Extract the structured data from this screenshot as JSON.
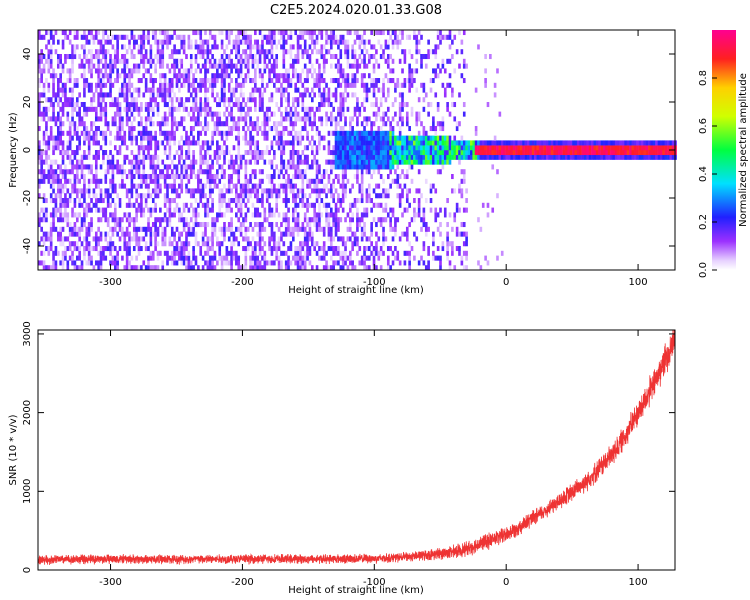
{
  "title": "C2E5.2024.020.01.33.G08",
  "chart_data": [
    {
      "type": "heatmap",
      "xlabel": "Height of straight line (km)",
      "ylabel": "Frequency (Hz)",
      "xlim": [
        -355,
        128
      ],
      "ylim": [
        -50,
        50
      ],
      "xticks": [
        "-300",
        "-200",
        "-100",
        "0",
        "100"
      ],
      "xtick_values": [
        -300,
        -200,
        -100,
        0,
        100
      ],
      "yticks": [
        "-40",
        "-20",
        "0",
        "20",
        "40"
      ],
      "ytick_values": [
        -40,
        -20,
        0,
        20,
        40
      ],
      "colorbar": {
        "label": "Normalized spectral amplitude",
        "range": [
          0,
          1
        ],
        "ticks": [
          "0.0",
          "0.2",
          "0.4",
          "0.6",
          "0.8"
        ],
        "tick_values": [
          0.0,
          0.2,
          0.4,
          0.6,
          0.8
        ],
        "colormap": "rainbow (white-lavender-purple-blue-cyan-green-yellow-orange-red-magenta)"
      },
      "features": [
        {
          "region": "noise",
          "x_range": [
            -355,
            -30
          ],
          "freq_range": [
            -50,
            50
          ],
          "amplitude": "0.0-0.2 scattered"
        },
        {
          "region": "transition",
          "x_range": [
            -130,
            -25
          ],
          "freq_range": [
            -8,
            8
          ],
          "amplitude": "0.2-0.6"
        },
        {
          "region": "carrier",
          "x_range": [
            -25,
            128
          ],
          "freq": 0,
          "amplitude": "0.8-1.0"
        }
      ]
    },
    {
      "type": "line",
      "xlabel": "Height of straight line (km)",
      "ylabel": "SNR (10 * v/v)",
      "xlim": [
        -355,
        128
      ],
      "ylim": [
        0,
        3050
      ],
      "xticks": [
        "-300",
        "-200",
        "-100",
        "0",
        "100"
      ],
      "xtick_values": [
        -300,
        -200,
        -100,
        0,
        100
      ],
      "yticks": [
        "0",
        "1000",
        "2000",
        "3000"
      ],
      "ytick_values": [
        0,
        1000,
        2000,
        3000
      ],
      "series": [
        {
          "color": "#ee3333",
          "x": [
            -355,
            -300,
            -250,
            -200,
            -150,
            -100,
            -80,
            -60,
            -40,
            -30,
            -20,
            -10,
            0,
            10,
            20,
            30,
            40,
            50,
            60,
            70,
            80,
            90,
            100,
            110,
            120,
            128
          ],
          "values": [
            130,
            140,
            135,
            140,
            140,
            145,
            160,
            190,
            230,
            270,
            330,
            390,
            450,
            550,
            650,
            760,
            870,
            990,
            1120,
            1280,
            1460,
            1700,
            2000,
            2300,
            2650,
            2950
          ],
          "noise_amplitude": [
            70,
            70,
            70,
            70,
            70,
            70,
            70,
            80,
            100,
            110,
            120,
            120,
            120,
            120,
            120,
            120,
            130,
            140,
            150,
            160,
            170,
            180,
            200,
            220,
            240,
            260
          ]
        }
      ]
    }
  ]
}
